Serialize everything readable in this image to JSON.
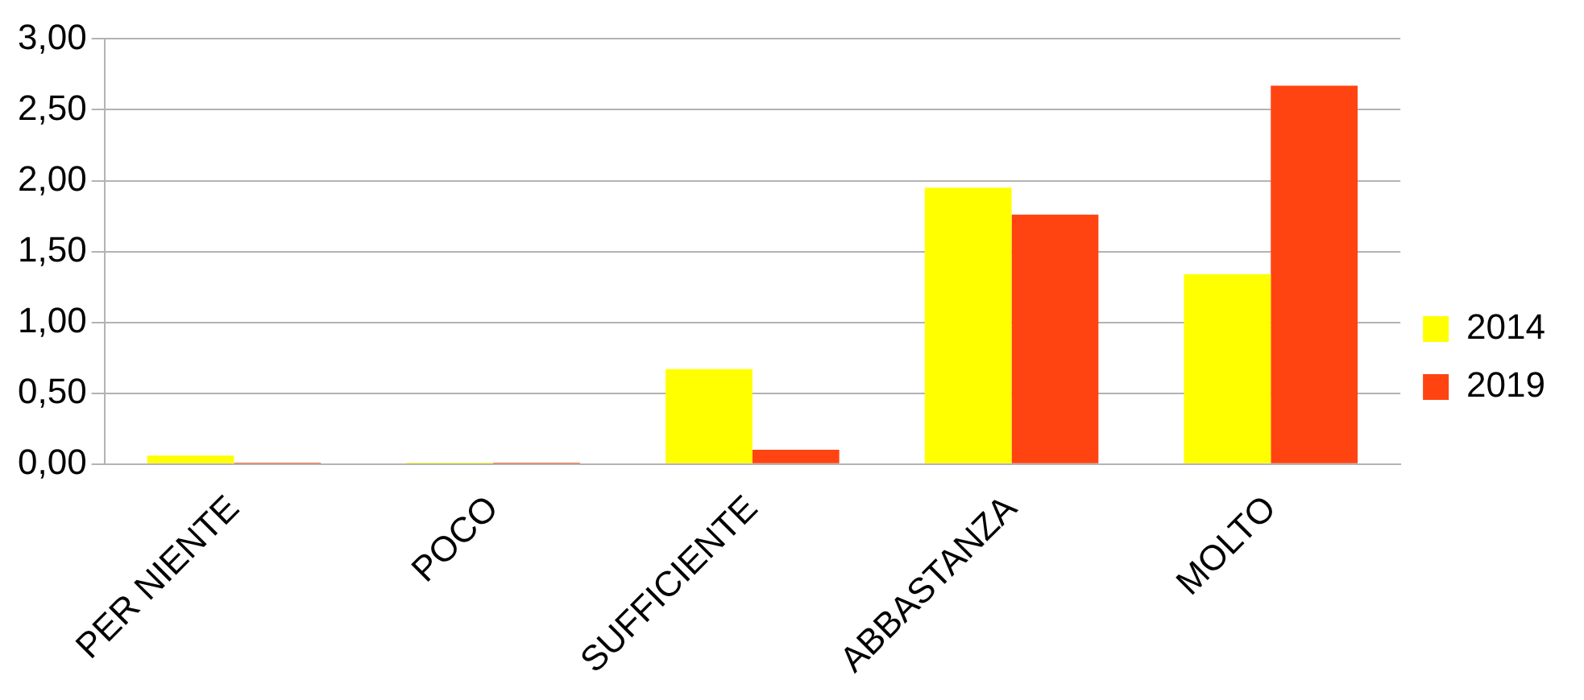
{
  "chart_data": {
    "type": "bar",
    "categories": [
      "PER NIENTE",
      "POCO",
      "SUFFICIENTE",
      "ABBASTANZA",
      "MOLTO"
    ],
    "series": [
      {
        "name": "2014",
        "color": "#ffff00",
        "values": [
          0.06,
          0.01,
          0.67,
          1.95,
          1.34
        ]
      },
      {
        "name": "2019",
        "color": "#ff4411",
        "values": [
          0.01,
          0.01,
          0.1,
          1.76,
          2.67
        ]
      }
    ],
    "ylim": [
      0,
      3
    ],
    "yticks": [
      {
        "value": 0,
        "label": "0,00"
      },
      {
        "value": 0.5,
        "label": "0,50"
      },
      {
        "value": 1,
        "label": "1,00"
      },
      {
        "value": 1.5,
        "label": "1,50"
      },
      {
        "value": 2,
        "label": "2,00"
      },
      {
        "value": 2.5,
        "label": "2,50"
      },
      {
        "value": 3,
        "label": "3,00"
      }
    ],
    "grid": "y",
    "legend": "right"
  }
}
